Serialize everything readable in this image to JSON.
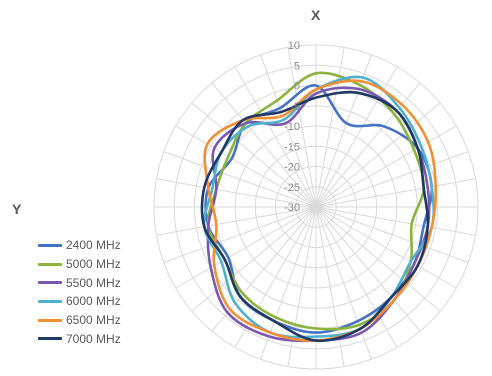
{
  "chart_data": {
    "type": "line",
    "subtype": "polar-radiation-pattern",
    "title": "",
    "axis_labels": {
      "x": "X",
      "y": "Y"
    },
    "radial_axis": {
      "min": -30,
      "max": 10,
      "ticks": [
        "-30",
        "-25",
        "-20",
        "-15",
        "-10",
        "-5",
        "0",
        "5",
        "10"
      ]
    },
    "angular_spokes": 36,
    "grid": true,
    "legend_position": "left",
    "angles_deg": [
      0,
      20,
      40,
      60,
      80,
      100,
      120,
      140,
      160,
      180,
      200,
      220,
      240,
      260,
      280,
      300,
      320,
      340
    ],
    "series": [
      {
        "name": "2400 MHz",
        "color": "#4472c4",
        "values": [
          0,
          -8,
          -4,
          -1,
          -1,
          -3,
          -2,
          -1,
          0,
          1,
          0,
          -1,
          -5,
          -3,
          -3,
          -6,
          -3,
          -4
        ]
      },
      {
        "name": "5000 MHz",
        "color": "#8cb33e",
        "values": [
          3,
          2,
          0,
          -2,
          -3,
          -6,
          -3,
          0,
          1,
          0,
          -1,
          -2,
          -4,
          -3,
          -5,
          -5,
          -3,
          -2
        ]
      },
      {
        "name": "5500 MHz",
        "color": "#7a58b0",
        "values": [
          -2,
          1,
          1,
          -1,
          -2,
          -2,
          -2,
          0,
          3,
          3,
          4,
          4,
          0,
          -3,
          -5,
          -1,
          -3,
          -8
        ]
      },
      {
        "name": "6000 MHz",
        "color": "#4fb1cc",
        "values": [
          -1,
          4,
          2,
          0,
          -1,
          -1,
          -3,
          -1,
          2,
          2,
          3,
          1,
          -3,
          -2,
          -4,
          -3,
          -4,
          -7
        ]
      },
      {
        "name": "6500 MHz",
        "color": "#f18f33",
        "values": [
          -1,
          3,
          3,
          2,
          0,
          -1,
          -1,
          0,
          2,
          3,
          3,
          3,
          -1,
          -5,
          -3,
          1,
          -2,
          -6
        ]
      },
      {
        "name": "7000 MHz",
        "color": "#1f3864",
        "values": [
          -3,
          0,
          1,
          -1,
          -3,
          -2,
          -1,
          -1,
          2,
          3,
          0,
          -1,
          -4,
          -2,
          -2,
          -3,
          -2,
          -5
        ]
      }
    ]
  }
}
